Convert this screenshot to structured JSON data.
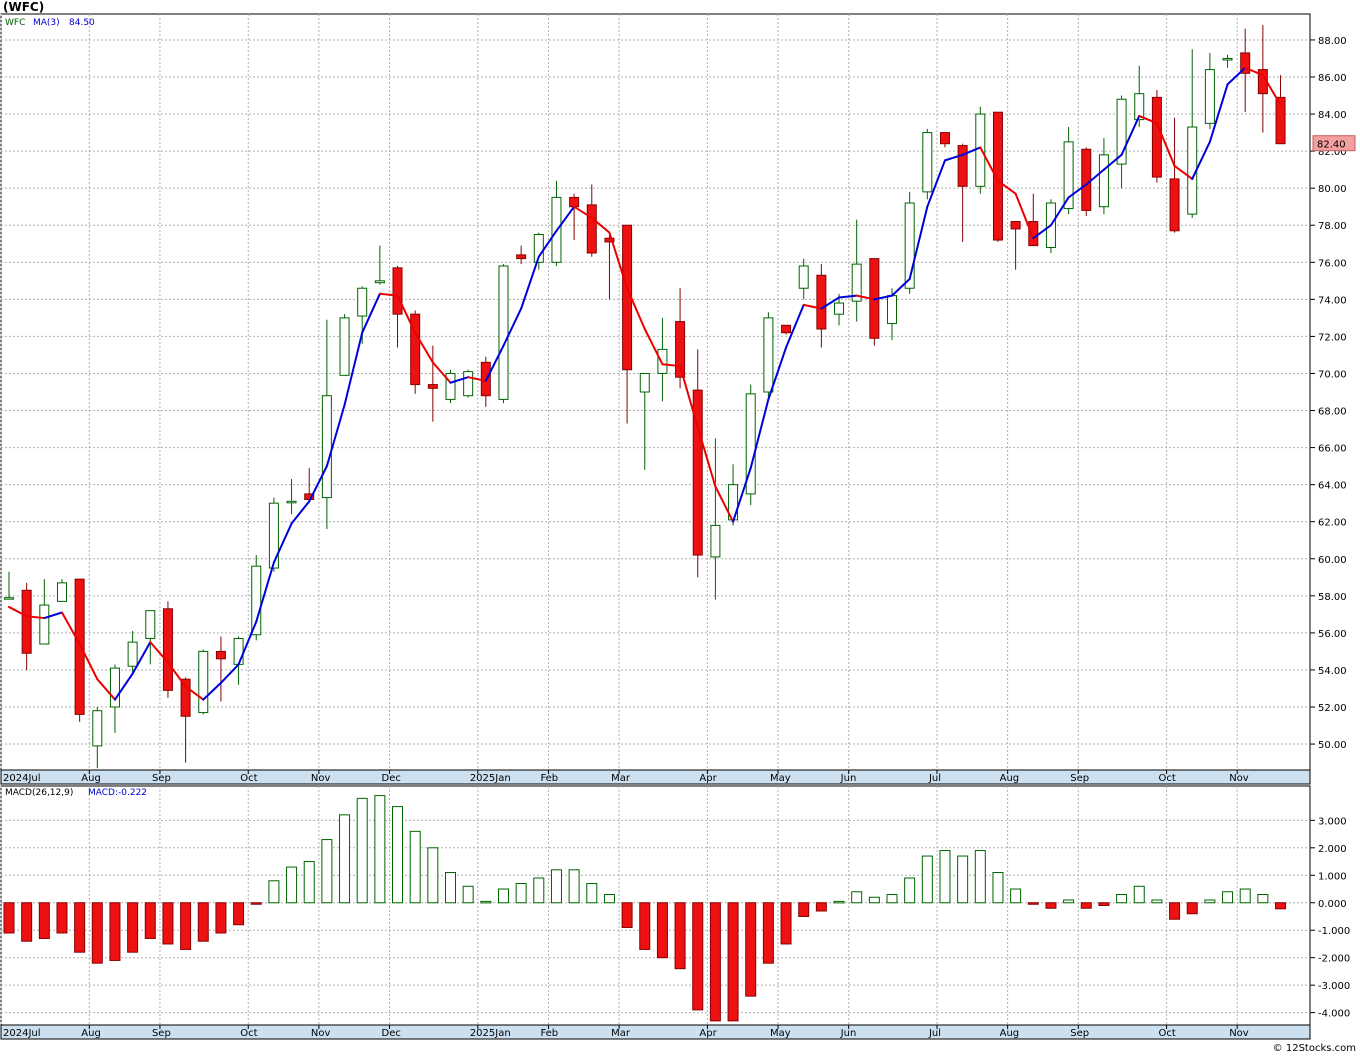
{
  "header": {
    "title": "(WFC)",
    "credit": "© 12Stocks.com"
  },
  "colors": {
    "up_body": "#ffffff",
    "up_stroke": "#006400",
    "down_body": "#ee1111",
    "down_stroke": "#880000",
    "ma_up": "#0000dd",
    "ma_down": "#ee0000",
    "grid": "#b0b0b0",
    "axis_band": "#cce0f0",
    "last_price_bg": "#f4a0a0"
  },
  "chart_data": [
    {
      "type": "candlestick",
      "symbol_label": "WFC",
      "indicator_label": "MA(3)",
      "indicator_value": "84.50",
      "last_price": "82.40",
      "ylim": [
        48.6,
        89.4
      ],
      "yticks": [
        "50.00",
        "52.00",
        "54.00",
        "56.00",
        "58.00",
        "60.00",
        "62.00",
        "64.00",
        "66.00",
        "68.00",
        "70.00",
        "72.00",
        "74.00",
        "76.00",
        "78.00",
        "80.00",
        "82.00",
        "84.00",
        "86.00",
        "88.00"
      ],
      "xlabels": [
        {
          "i": 0,
          "label": "2024Jul"
        },
        {
          "i": 5,
          "label": "Aug"
        },
        {
          "i": 9,
          "label": "Sep"
        },
        {
          "i": 14,
          "label": "Oct"
        },
        {
          "i": 18,
          "label": "Nov"
        },
        {
          "i": 22,
          "label": "Dec"
        },
        {
          "i": 27,
          "label": "2025Jan"
        },
        {
          "i": 31,
          "label": "Feb"
        },
        {
          "i": 35,
          "label": "Mar"
        },
        {
          "i": 40,
          "label": "Apr"
        },
        {
          "i": 44,
          "label": "May"
        },
        {
          "i": 48,
          "label": "Jun"
        },
        {
          "i": 53,
          "label": "Jul"
        },
        {
          "i": 57,
          "label": "Aug"
        },
        {
          "i": 61,
          "label": "Sep"
        },
        {
          "i": 66,
          "label": "Oct"
        },
        {
          "i": 70,
          "label": "Nov"
        }
      ],
      "candles": [
        [
          57.9,
          59.3,
          57.8,
          57.9
        ],
        [
          58.3,
          58.7,
          54.0,
          54.9
        ],
        [
          55.4,
          58.9,
          55.4,
          57.5
        ],
        [
          57.7,
          58.9,
          57.7,
          58.7
        ],
        [
          58.9,
          58.9,
          51.2,
          51.6
        ],
        [
          49.9,
          52.0,
          48.7,
          51.8
        ],
        [
          52.0,
          54.3,
          50.6,
          54.1
        ],
        [
          54.2,
          56.1,
          53.8,
          55.5
        ],
        [
          55.7,
          57.2,
          54.3,
          57.2
        ],
        [
          57.3,
          57.7,
          52.5,
          52.9
        ],
        [
          53.5,
          53.6,
          49.0,
          51.5
        ],
        [
          51.7,
          55.1,
          51.6,
          55.0
        ],
        [
          55.0,
          55.8,
          52.3,
          54.6
        ],
        [
          54.3,
          55.8,
          53.2,
          55.7
        ],
        [
          55.9,
          60.2,
          55.6,
          59.6
        ],
        [
          59.5,
          63.3,
          59.3,
          63.0
        ],
        [
          63.1,
          64.3,
          62.4,
          63.1
        ],
        [
          63.5,
          64.9,
          63.0,
          63.2
        ],
        [
          63.3,
          72.9,
          61.6,
          68.8
        ],
        [
          69.9,
          73.2,
          69.9,
          73.0
        ],
        [
          73.1,
          74.7,
          71.6,
          74.6
        ],
        [
          74.9,
          76.9,
          74.8,
          75.0
        ],
        [
          75.7,
          75.8,
          71.4,
          73.2
        ],
        [
          73.2,
          73.4,
          68.9,
          69.4
        ],
        [
          69.4,
          71.5,
          67.4,
          69.2
        ],
        [
          68.6,
          70.2,
          68.4,
          70.0
        ],
        [
          68.8,
          70.2,
          68.7,
          70.1
        ],
        [
          70.6,
          70.9,
          68.2,
          68.8
        ],
        [
          68.6,
          75.9,
          68.4,
          75.8
        ],
        [
          76.4,
          76.9,
          75.9,
          76.2
        ],
        [
          76.0,
          77.6,
          75.6,
          77.5
        ],
        [
          76.0,
          80.4,
          75.8,
          79.5
        ],
        [
          79.5,
          79.7,
          77.2,
          79.0
        ],
        [
          79.1,
          80.2,
          76.3,
          76.5
        ],
        [
          77.3,
          77.5,
          74.0,
          77.1
        ],
        [
          78.0,
          78.0,
          67.3,
          70.2
        ],
        [
          69.0,
          70.0,
          64.8,
          70.0
        ],
        [
          70.0,
          73.0,
          68.5,
          71.3
        ],
        [
          72.8,
          74.6,
          69.2,
          69.8
        ],
        [
          69.1,
          71.3,
          59.0,
          60.2
        ],
        [
          60.1,
          66.5,
          57.8,
          61.8
        ],
        [
          62.1,
          65.1,
          61.8,
          64.0
        ],
        [
          63.5,
          69.4,
          62.9,
          68.9
        ],
        [
          69.0,
          73.3,
          68.5,
          73.0
        ],
        [
          72.6,
          72.6,
          72.1,
          72.2
        ],
        [
          74.6,
          76.2,
          74.0,
          75.8
        ],
        [
          75.3,
          75.9,
          71.4,
          72.4
        ],
        [
          73.2,
          74.3,
          72.6,
          73.8
        ],
        [
          73.9,
          78.3,
          72.8,
          75.9
        ],
        [
          76.2,
          76.2,
          71.5,
          71.9
        ],
        [
          72.7,
          74.6,
          71.8,
          74.2
        ],
        [
          74.6,
          79.8,
          74.3,
          79.2
        ],
        [
          79.8,
          83.2,
          79.4,
          83.0
        ],
        [
          83.0,
          83.0,
          82.2,
          82.4
        ],
        [
          82.3,
          82.4,
          77.1,
          80.1
        ],
        [
          80.1,
          84.4,
          79.7,
          84.0
        ],
        [
          84.1,
          84.1,
          77.1,
          77.2
        ],
        [
          78.2,
          78.2,
          75.6,
          77.8
        ],
        [
          78.2,
          79.7,
          76.9,
          76.9
        ],
        [
          76.8,
          79.4,
          76.5,
          79.2
        ],
        [
          78.9,
          83.3,
          78.6,
          82.5
        ],
        [
          82.1,
          82.2,
          78.5,
          78.8
        ],
        [
          79.0,
          82.7,
          78.6,
          81.8
        ],
        [
          81.3,
          85.0,
          80.0,
          84.8
        ],
        [
          83.7,
          86.6,
          83.3,
          85.1
        ],
        [
          84.9,
          85.3,
          80.3,
          80.6
        ],
        [
          80.5,
          83.8,
          77.6,
          77.7
        ],
        [
          78.6,
          87.5,
          78.4,
          83.3
        ],
        [
          83.5,
          87.3,
          83.2,
          86.4
        ],
        [
          87.0,
          87.2,
          86.5,
          87.0
        ],
        [
          87.3,
          88.6,
          84.1,
          86.2
        ],
        [
          86.4,
          88.8,
          83.0,
          85.1
        ],
        [
          84.9,
          86.1,
          82.4,
          82.4
        ]
      ],
      "ma": [
        57.4,
        56.9,
        56.8,
        57.1,
        55.4,
        53.5,
        52.4,
        53.8,
        55.5,
        54.4,
        53.1,
        52.4,
        53.3,
        54.3,
        56.6,
        59.8,
        61.9,
        63.1,
        65.0,
        68.3,
        72.2,
        74.3,
        74.2,
        72.2,
        70.6,
        69.5,
        69.8,
        69.6,
        71.5,
        73.5,
        76.3,
        77.7,
        79.0,
        78.4,
        77.6,
        74.6,
        72.4,
        70.5,
        70.4,
        67.1,
        63.9,
        62.0,
        64.9,
        68.6,
        71.4,
        73.7,
        73.5,
        74.1,
        74.2,
        74.0,
        74.2,
        75.1,
        79.0,
        81.5,
        81.8,
        82.2,
        80.4,
        79.7,
        77.3,
        78.0,
        79.5,
        80.2,
        81.0,
        81.8,
        83.9,
        83.5,
        81.2,
        80.5,
        82.5,
        85.6,
        86.5,
        86.1,
        84.5
      ]
    },
    {
      "type": "bar",
      "indicator_label": "MACD(26,12,9)",
      "indicator_value": "MACD:-0.222",
      "ylim": [
        -4.45,
        4.25
      ],
      "yticks": [
        "-4.000",
        "-3.000",
        "-2.000",
        "-1.000",
        "0.000",
        "1.000",
        "2.000",
        "3.000"
      ],
      "values": [
        -1.1,
        -1.4,
        -1.3,
        -1.1,
        -1.8,
        -2.2,
        -2.1,
        -1.8,
        -1.3,
        -1.5,
        -1.7,
        -1.4,
        -1.1,
        -0.8,
        -0.05,
        0.8,
        1.3,
        1.5,
        2.3,
        3.2,
        3.8,
        3.9,
        3.5,
        2.6,
        2.0,
        1.1,
        0.6,
        0.05,
        0.5,
        0.7,
        0.9,
        1.2,
        1.2,
        0.7,
        0.3,
        -0.9,
        -1.7,
        -2.0,
        -2.4,
        -3.9,
        -4.3,
        -4.3,
        -3.4,
        -2.2,
        -1.5,
        -0.5,
        -0.3,
        0.05,
        0.4,
        0.2,
        0.3,
        0.9,
        1.7,
        1.9,
        1.7,
        1.9,
        1.1,
        0.5,
        -0.05,
        -0.2,
        0.1,
        -0.2,
        -0.1,
        0.3,
        0.6,
        0.1,
        -0.6,
        -0.4,
        0.1,
        0.4,
        0.5,
        0.3,
        -0.22
      ]
    }
  ]
}
